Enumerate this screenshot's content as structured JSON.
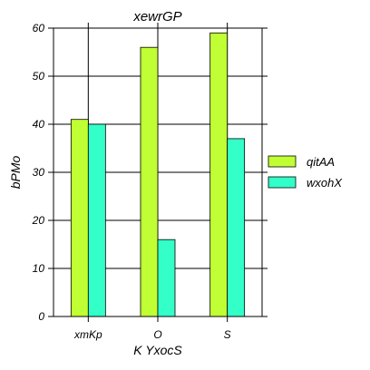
{
  "chart_data": {
    "type": "bar",
    "title": "xewrGP",
    "xlabel": "K  YxocS",
    "ylabel": "bPMo",
    "categories": [
      "xmKp",
      "O",
      "S"
    ],
    "ylim": [
      0,
      60
    ],
    "yticks": [
      0,
      10,
      20,
      30,
      40,
      50,
      60
    ],
    "grid": true,
    "legend_position": "center-right",
    "series": [
      {
        "name": "qitAA",
        "values": [
          41,
          56,
          59
        ],
        "color": "#c0ff33"
      },
      {
        "name": "wxohX",
        "values": [
          40,
          16,
          37
        ],
        "color": "#33ffc9"
      }
    ]
  }
}
